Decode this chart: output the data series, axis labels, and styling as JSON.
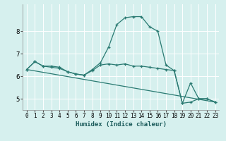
{
  "xlabel": "Humidex (Indice chaleur)",
  "ylabel": "",
  "background_color": "#d6f0ee",
  "grid_color": "#ffffff",
  "line_color": "#2a7a72",
  "xlim": [
    -0.5,
    23.5
  ],
  "ylim": [
    4.5,
    9.2
  ],
  "yticks": [
    5,
    6,
    7,
    8
  ],
  "xticks": [
    0,
    1,
    2,
    3,
    4,
    5,
    6,
    7,
    8,
    9,
    10,
    11,
    12,
    13,
    14,
    15,
    16,
    17,
    18,
    19,
    20,
    21,
    22,
    23
  ],
  "series": [
    {
      "x": [
        0,
        1,
        2,
        3,
        4,
        5,
        6,
        7,
        8,
        9,
        10,
        11,
        12,
        13,
        14,
        15,
        16,
        17,
        18,
        19,
        20,
        21,
        22,
        23
      ],
      "y": [
        6.3,
        6.65,
        6.45,
        6.45,
        6.4,
        6.2,
        6.1,
        6.05,
        6.3,
        6.6,
        7.3,
        8.3,
        8.6,
        8.65,
        8.65,
        8.2,
        8.0,
        6.5,
        6.25,
        4.8,
        5.7,
        5.0,
        5.0,
        4.85
      ],
      "marker": true
    },
    {
      "x": [
        0,
        1,
        2,
        3,
        4,
        5,
        6,
        7,
        8,
        9,
        10,
        11,
        12,
        13,
        14,
        15,
        16,
        17,
        18,
        19,
        20,
        21,
        22,
        23
      ],
      "y": [
        6.3,
        6.65,
        6.45,
        6.4,
        6.35,
        6.2,
        6.1,
        6.05,
        6.25,
        6.5,
        6.55,
        6.5,
        6.55,
        6.45,
        6.45,
        6.4,
        6.35,
        6.3,
        6.25,
        4.8,
        4.85,
        5.0,
        5.0,
        4.85
      ],
      "marker": true
    },
    {
      "x": [
        0,
        23
      ],
      "y": [
        6.3,
        4.85
      ],
      "marker": false
    }
  ]
}
